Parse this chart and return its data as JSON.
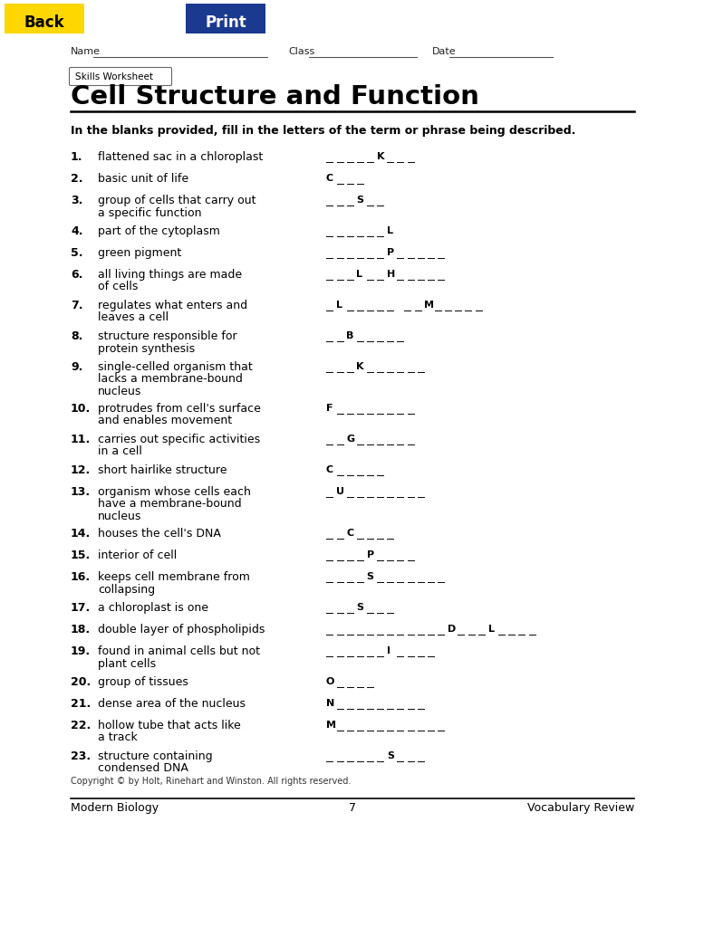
{
  "title": "Cell Structure and Function",
  "subtitle": "Skills Worksheet",
  "instruction": "In the blanks provided, fill in the letters of the term or phrase being described.",
  "back_button": {
    "text": "Back",
    "bg": "#FFD700",
    "fg": "#000000"
  },
  "print_button": {
    "text": "Print",
    "bg": "#1a3a8f",
    "fg": "#ffffff"
  },
  "items": [
    {
      "num": "1.",
      "desc": "flattened sac in a chloroplast",
      "blank": "_ _ _ _ _ K _ _ _",
      "lines": 1
    },
    {
      "num": "2.",
      "desc": "basic unit of life",
      "blank": "C _ _ _",
      "lines": 1
    },
    {
      "num": "3.",
      "desc": "group of cells that carry out\na specific function",
      "blank": "_ _ _ S _ _",
      "lines": 2
    },
    {
      "num": "4.",
      "desc": "part of the cytoplasm",
      "blank": "_ _ _ _ _ _ L",
      "lines": 1
    },
    {
      "num": "5.",
      "desc": "green pigment",
      "blank": "_ _ _ _ _ _ P _ _ _ _ _",
      "lines": 1
    },
    {
      "num": "6.",
      "desc": "all living things are made\nof cells",
      "blank": "_ _ _ L _ _ H _ _ _ _ _",
      "lines": 2
    },
    {
      "num": "7.",
      "desc": "regulates what enters and\nleaves a cell",
      "blank": "_ L _ _ _ _ _   _ _ M _ _ _ _ _",
      "lines": 2
    },
    {
      "num": "8.",
      "desc": "structure responsible for\nprotein synthesis",
      "blank": "_ _ B _ _ _ _ _",
      "lines": 2
    },
    {
      "num": "9.",
      "desc": "single-celled organism that\nlacks a membrane-bound\nnucleus",
      "blank": "_ _ _ K _ _ _ _ _ _",
      "lines": 3
    },
    {
      "num": "10.",
      "desc": "protrudes from cell's surface\nand enables movement",
      "blank": "F _ _ _ _ _ _ _ _",
      "lines": 2
    },
    {
      "num": "11.",
      "desc": "carries out specific activities\nin a cell",
      "blank": "_ _ G _ _ _ _ _ _",
      "lines": 2
    },
    {
      "num": "12.",
      "desc": "short hairlike structure",
      "blank": "C _ _ _ _ _",
      "lines": 1
    },
    {
      "num": "13.",
      "desc": "organism whose cells each\nhave a membrane-bound\nnucleus",
      "blank": "_ U _ _ _ _ _ _ _ _",
      "lines": 3
    },
    {
      "num": "14.",
      "desc": "houses the cell's DNA",
      "blank": "_ _ C _ _ _ _",
      "lines": 1
    },
    {
      "num": "15.",
      "desc": "interior of cell",
      "blank": "_ _ _ _ P _ _ _ _",
      "lines": 1
    },
    {
      "num": "16.",
      "desc": "keeps cell membrane from\ncollapsing",
      "blank": "_ _ _ _ S _ _ _ _ _ _ _",
      "lines": 2
    },
    {
      "num": "17.",
      "desc": "a chloroplast is one",
      "blank": "_ _ _ S _ _ _",
      "lines": 1
    },
    {
      "num": "18.",
      "desc": "double layer of phospholipids",
      "blank": "_ _ _ _ _ _ _ _ _ _ _ _ D _ _ _ L _ _ _ _",
      "lines": 1
    },
    {
      "num": "19.",
      "desc": "found in animal cells but not\nplant cells",
      "blank": "_ _ _ _ _ _ I _ _ _ _",
      "lines": 2
    },
    {
      "num": "20.",
      "desc": "group of tissues",
      "blank": "O _ _ _ _",
      "lines": 1
    },
    {
      "num": "21.",
      "desc": "dense area of the nucleus",
      "blank": "N _ _ _ _ _ _ _ _ _",
      "lines": 1
    },
    {
      "num": "22.",
      "desc": "hollow tube that acts like\na track",
      "blank": "M _ _ _ _ _ _ _ _ _ _ _",
      "lines": 2
    },
    {
      "num": "23.",
      "desc": "structure containing\ncondensed DNA",
      "blank": "_ _ _ _ _ _ S _ _ _",
      "lines": 2
    }
  ],
  "footer_left": "Modern Biology",
  "footer_center": "7",
  "footer_right": "Vocabulary Review",
  "copyright": "Copyright © by Holt, Rinehart and Winston. All rights reserved.",
  "bg_color": "#ffffff"
}
